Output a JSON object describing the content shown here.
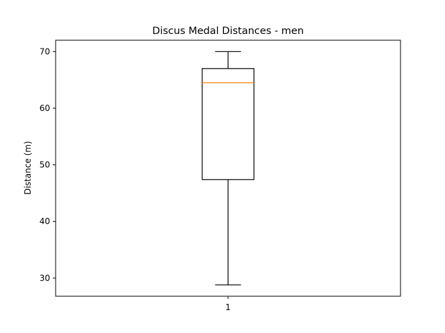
{
  "chart_data": {
    "type": "box",
    "title": "Discus Medal Distances - men",
    "xlabel": "",
    "ylabel": "Distance (m)",
    "categories": [
      "1"
    ],
    "boxes": [
      {
        "label": "1",
        "whisker_low": 28.8,
        "q1": 47.4,
        "median": 64.5,
        "q3": 67.0,
        "whisker_high": 70.0
      }
    ],
    "ylim": [
      26.8,
      72.0
    ],
    "yticks": [
      30,
      40,
      50,
      60,
      70
    ],
    "grid": false,
    "colors": {
      "box": "#000000",
      "median": "#ff7f0e",
      "axes": "#000000"
    }
  }
}
